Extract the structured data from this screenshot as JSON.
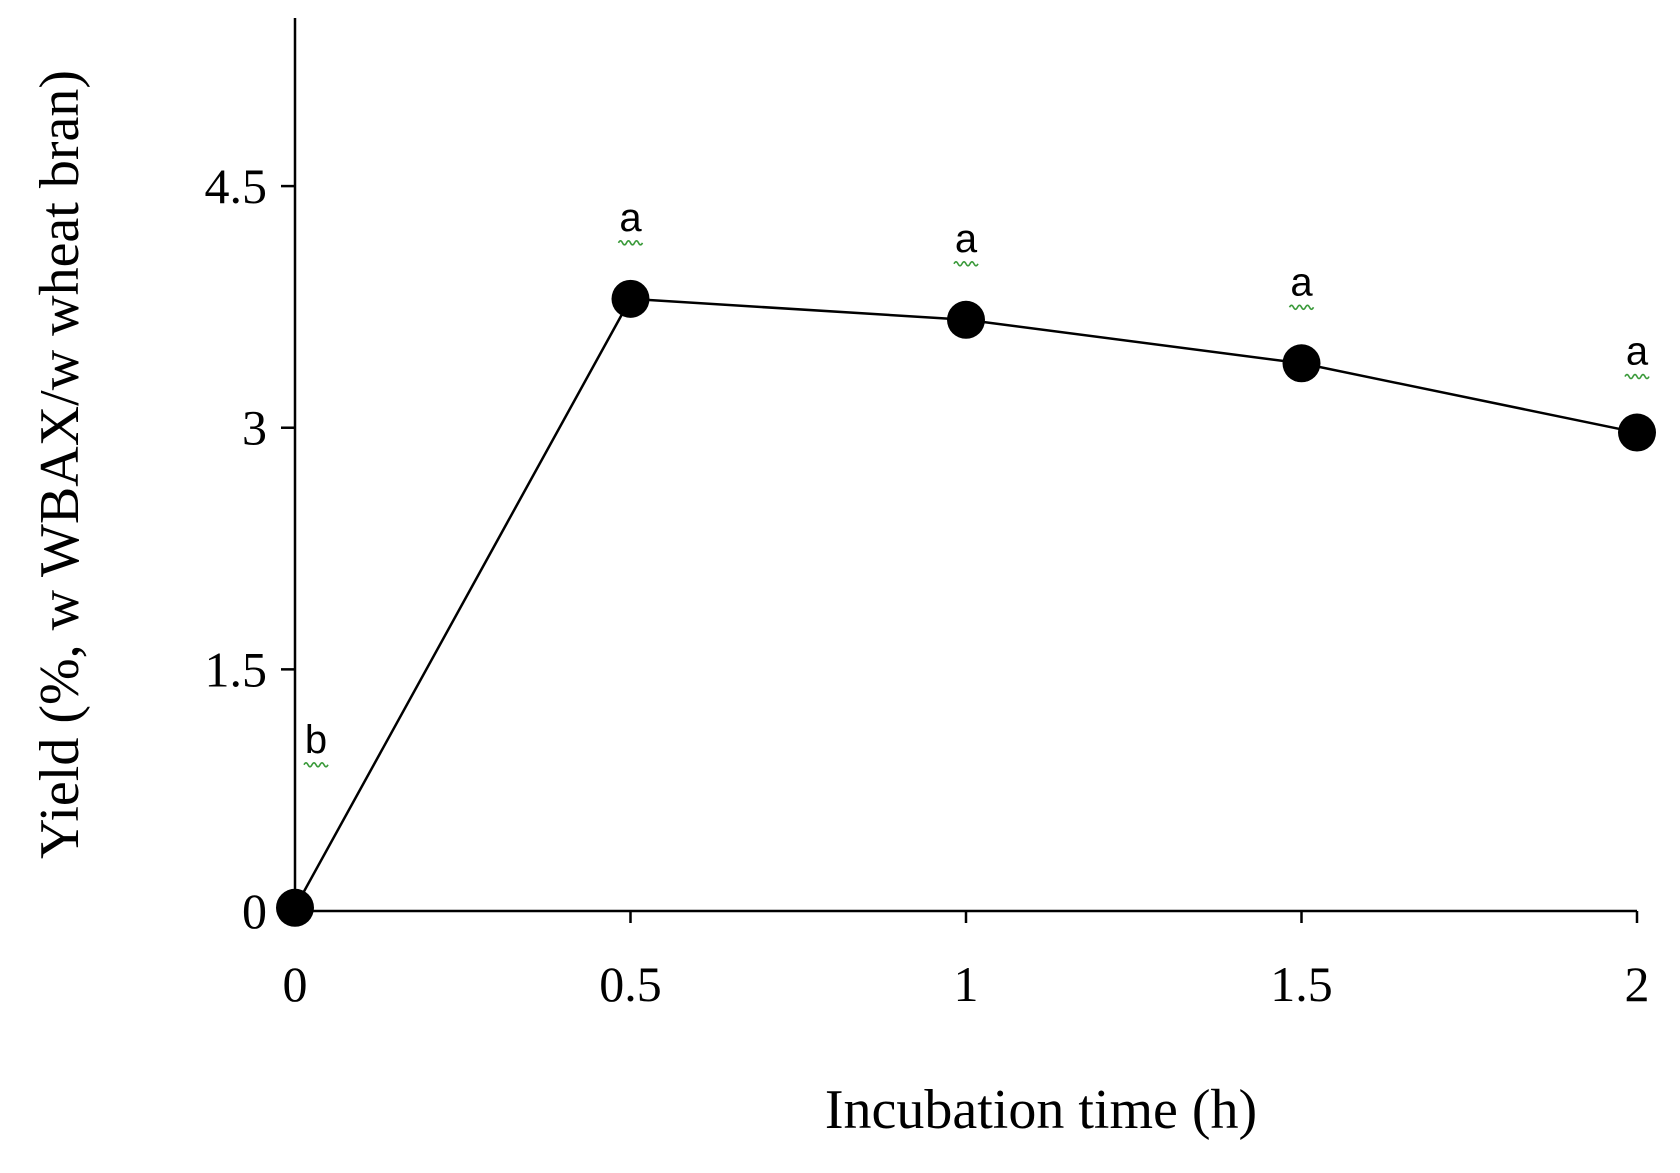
{
  "chart_data": {
    "type": "line",
    "xlabel": "Incubation time (h)",
    "ylabel": "Yield (%, w WBAX/w wheat bran)",
    "xlim": [
      0,
      2
    ],
    "ylim": [
      0,
      5.5
    ],
    "xticks": [
      0,
      0.5,
      1,
      1.5,
      2
    ],
    "xtick_labels": [
      "0",
      "0.5",
      "1",
      "1.5",
      "2"
    ],
    "yticks": [
      0,
      1.5,
      3,
      4.5
    ],
    "ytick_labels": [
      "0",
      "1.5",
      "3",
      "4.5"
    ],
    "grid": false,
    "legend": "none",
    "series": [
      {
        "x": [
          0,
          0.5,
          1,
          1.5,
          2
        ],
        "y": [
          0.02,
          3.8,
          3.67,
          3.4,
          2.97
        ],
        "color": "#000000",
        "marker": "circle"
      }
    ],
    "annotations": [
      "b",
      "a",
      "a",
      "a",
      "a"
    ]
  }
}
